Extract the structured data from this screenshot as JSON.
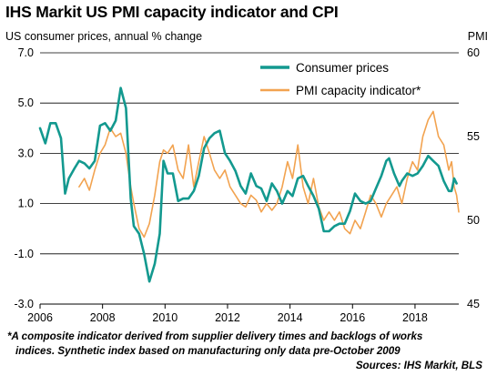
{
  "title": "IHS Markit US PMI capacity indicator and CPI",
  "footnote": {
    "line1": "*A composite indicator derived from supplier delivery times and backlogs of works",
    "line2": "indices. Synthetic index based on manufacturing only data pre-October 2009",
    "sources": "Sources: IHS Markit, BLS"
  },
  "chart_data": {
    "type": "line",
    "left_axis_label": "US consumer prices, annual % change",
    "right_axis_label": "PMI",
    "y_left": {
      "min": -3,
      "max": 7,
      "ticks": [
        "7.0",
        "5.0",
        "3.0",
        "1.0",
        "-1.0",
        "-3.0"
      ],
      "tick_values": [
        7,
        5,
        3,
        1,
        -1,
        -3
      ]
    },
    "y_right": {
      "min": 45,
      "max": 60,
      "ticks": [
        "60",
        "55",
        "50",
        "45"
      ],
      "tick_values": [
        60,
        55,
        50,
        45
      ]
    },
    "x_range": [
      2006.0,
      2019.4
    ],
    "x_ticks": [
      "2006",
      "2008",
      "2010",
      "2012",
      "2014",
      "2016",
      "2018"
    ],
    "x_tick_values": [
      2006,
      2008,
      2010,
      2012,
      2014,
      2016,
      2018
    ],
    "gridlines": "horizontal",
    "legend": {
      "position": "top-right"
    },
    "series": [
      {
        "name": "Consumer prices",
        "axis": "left",
        "color": "#13998f",
        "points": [
          [
            2006.0,
            4.0
          ],
          [
            2006.17,
            3.4
          ],
          [
            2006.33,
            4.2
          ],
          [
            2006.5,
            4.2
          ],
          [
            2006.67,
            3.6
          ],
          [
            2006.8,
            1.4
          ],
          [
            2006.92,
            2.0
          ],
          [
            2007.1,
            2.4
          ],
          [
            2007.25,
            2.7
          ],
          [
            2007.42,
            2.6
          ],
          [
            2007.58,
            2.4
          ],
          [
            2007.75,
            2.7
          ],
          [
            2007.92,
            4.1
          ],
          [
            2008.08,
            4.2
          ],
          [
            2008.25,
            3.9
          ],
          [
            2008.42,
            4.3
          ],
          [
            2008.58,
            5.6
          ],
          [
            2008.75,
            4.8
          ],
          [
            2008.9,
            1.2
          ],
          [
            2009.0,
            0.1
          ],
          [
            2009.17,
            -0.2
          ],
          [
            2009.33,
            -1.0
          ],
          [
            2009.5,
            -2.1
          ],
          [
            2009.67,
            -1.4
          ],
          [
            2009.83,
            -0.2
          ],
          [
            2009.95,
            2.7
          ],
          [
            2010.08,
            2.2
          ],
          [
            2010.25,
            2.2
          ],
          [
            2010.42,
            1.1
          ],
          [
            2010.58,
            1.2
          ],
          [
            2010.75,
            1.2
          ],
          [
            2010.92,
            1.5
          ],
          [
            2011.08,
            2.1
          ],
          [
            2011.25,
            3.2
          ],
          [
            2011.42,
            3.6
          ],
          [
            2011.58,
            3.8
          ],
          [
            2011.75,
            3.9
          ],
          [
            2011.92,
            3.0
          ],
          [
            2012.08,
            2.7
          ],
          [
            2012.25,
            2.3
          ],
          [
            2012.42,
            1.7
          ],
          [
            2012.58,
            1.4
          ],
          [
            2012.75,
            2.2
          ],
          [
            2012.92,
            1.7
          ],
          [
            2013.08,
            1.6
          ],
          [
            2013.25,
            1.1
          ],
          [
            2013.42,
            1.8
          ],
          [
            2013.58,
            1.5
          ],
          [
            2013.75,
            1.0
          ],
          [
            2013.92,
            1.5
          ],
          [
            2014.08,
            1.3
          ],
          [
            2014.25,
            2.0
          ],
          [
            2014.42,
            2.1
          ],
          [
            2014.58,
            1.7
          ],
          [
            2014.75,
            1.3
          ],
          [
            2014.92,
            0.8
          ],
          [
            2015.08,
            -0.1
          ],
          [
            2015.25,
            -0.1
          ],
          [
            2015.42,
            0.1
          ],
          [
            2015.58,
            0.2
          ],
          [
            2015.75,
            0.2
          ],
          [
            2015.92,
            0.7
          ],
          [
            2016.08,
            1.4
          ],
          [
            2016.25,
            1.1
          ],
          [
            2016.42,
            1.0
          ],
          [
            2016.58,
            1.1
          ],
          [
            2016.75,
            1.6
          ],
          [
            2016.92,
            2.1
          ],
          [
            2017.08,
            2.7
          ],
          [
            2017.17,
            2.8
          ],
          [
            2017.33,
            2.2
          ],
          [
            2017.5,
            1.7
          ],
          [
            2017.58,
            1.9
          ],
          [
            2017.75,
            2.2
          ],
          [
            2017.92,
            2.1
          ],
          [
            2018.08,
            2.2
          ],
          [
            2018.25,
            2.5
          ],
          [
            2018.42,
            2.9
          ],
          [
            2018.58,
            2.7
          ],
          [
            2018.75,
            2.5
          ],
          [
            2018.92,
            1.9
          ],
          [
            2019.08,
            1.5
          ],
          [
            2019.17,
            1.5
          ],
          [
            2019.25,
            2.0
          ],
          [
            2019.33,
            1.8
          ]
        ]
      },
      {
        "name": "PMI capacity indicator*",
        "axis": "right",
        "color": "#f2a350",
        "points": [
          [
            2007.25,
            52.0
          ],
          [
            2007.42,
            52.5
          ],
          [
            2007.58,
            51.8
          ],
          [
            2007.75,
            53.0
          ],
          [
            2007.92,
            54.0
          ],
          [
            2008.08,
            54.5
          ],
          [
            2008.25,
            55.5
          ],
          [
            2008.42,
            55.0
          ],
          [
            2008.58,
            55.2
          ],
          [
            2008.75,
            54.0
          ],
          [
            2008.9,
            52.0
          ],
          [
            2009.0,
            51.0
          ],
          [
            2009.17,
            49.5
          ],
          [
            2009.33,
            49.0
          ],
          [
            2009.5,
            49.8
          ],
          [
            2009.67,
            51.5
          ],
          [
            2009.83,
            53.5
          ],
          [
            2009.95,
            54.2
          ],
          [
            2010.08,
            54.0
          ],
          [
            2010.25,
            54.5
          ],
          [
            2010.42,
            53.0
          ],
          [
            2010.58,
            52.5
          ],
          [
            2010.75,
            54.5
          ],
          [
            2010.92,
            52.0
          ],
          [
            2011.08,
            53.5
          ],
          [
            2011.25,
            55.0
          ],
          [
            2011.42,
            54.0
          ],
          [
            2011.58,
            53.0
          ],
          [
            2011.75,
            52.5
          ],
          [
            2011.92,
            53.0
          ],
          [
            2012.08,
            52.0
          ],
          [
            2012.25,
            51.5
          ],
          [
            2012.42,
            51.0
          ],
          [
            2012.58,
            50.8
          ],
          [
            2012.75,
            51.5
          ],
          [
            2012.92,
            51.2
          ],
          [
            2013.08,
            50.5
          ],
          [
            2013.25,
            51.0
          ],
          [
            2013.42,
            50.6
          ],
          [
            2013.58,
            51.0
          ],
          [
            2013.75,
            52.0
          ],
          [
            2013.92,
            53.5
          ],
          [
            2014.08,
            52.5
          ],
          [
            2014.25,
            54.5
          ],
          [
            2014.42,
            52.0
          ],
          [
            2014.58,
            51.0
          ],
          [
            2014.75,
            52.5
          ],
          [
            2014.92,
            50.8
          ],
          [
            2015.08,
            50.0
          ],
          [
            2015.25,
            50.5
          ],
          [
            2015.42,
            50.0
          ],
          [
            2015.58,
            50.5
          ],
          [
            2015.75,
            49.5
          ],
          [
            2015.92,
            49.2
          ],
          [
            2016.08,
            50.0
          ],
          [
            2016.25,
            49.5
          ],
          [
            2016.42,
            50.5
          ],
          [
            2016.58,
            51.5
          ],
          [
            2016.75,
            51.0
          ],
          [
            2016.92,
            50.2
          ],
          [
            2017.08,
            51.0
          ],
          [
            2017.25,
            51.5
          ],
          [
            2017.42,
            52.0
          ],
          [
            2017.58,
            51.0
          ],
          [
            2017.75,
            52.5
          ],
          [
            2017.92,
            53.5
          ],
          [
            2018.08,
            53.0
          ],
          [
            2018.25,
            55.0
          ],
          [
            2018.42,
            56.0
          ],
          [
            2018.58,
            56.5
          ],
          [
            2018.75,
            55.0
          ],
          [
            2018.92,
            54.5
          ],
          [
            2019.08,
            53.0
          ],
          [
            2019.17,
            53.5
          ],
          [
            2019.25,
            52.0
          ],
          [
            2019.33,
            51.5
          ],
          [
            2019.4,
            50.5
          ]
        ]
      }
    ]
  }
}
